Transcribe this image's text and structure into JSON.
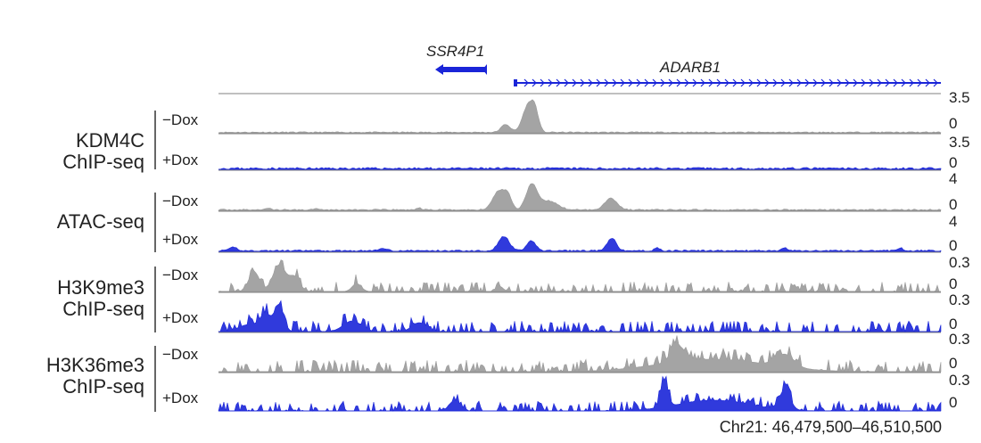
{
  "genes": [
    {
      "name": "SSR4P1",
      "strand": "-",
      "color": "#1a25d8"
    },
    {
      "name": "ADARB1",
      "strand": "+",
      "color": "#1a25d8"
    }
  ],
  "groups": [
    {
      "id": "kdm4c",
      "label_line1": "KDM4C",
      "label_line2": "ChIP-seq"
    },
    {
      "id": "atac",
      "label_line1": "ATAC-seq",
      "label_line2": ""
    },
    {
      "id": "h3k9",
      "label_line1": "H3K9me3",
      "label_line2": "ChIP-seq"
    },
    {
      "id": "h3k36",
      "label_line1": "H3K36me3",
      "label_line2": "ChIP-seq"
    }
  ],
  "tracks": [
    {
      "group": "kdm4c",
      "condition": "−Dox",
      "max_label": "3.5",
      "min_label": "0",
      "color": "#9a9a9a"
    },
    {
      "group": "kdm4c",
      "condition": "+Dox",
      "max_label": "3.5",
      "min_label": "0",
      "color": "#1a25d8"
    },
    {
      "group": "atac",
      "condition": "−Dox",
      "max_label": "4",
      "min_label": "0",
      "color": "#9a9a9a"
    },
    {
      "group": "atac",
      "condition": "+Dox",
      "max_label": "4",
      "min_label": "0",
      "color": "#1a25d8"
    },
    {
      "group": "h3k9",
      "condition": "−Dox",
      "max_label": "0.3",
      "min_label": "0",
      "color": "#9a9a9a"
    },
    {
      "group": "h3k9",
      "condition": "+Dox",
      "max_label": "0.3",
      "min_label": "0",
      "color": "#1a25d8"
    },
    {
      "group": "h3k36",
      "condition": "−Dox",
      "max_label": "0.3",
      "min_label": "0",
      "color": "#9a9a9a"
    },
    {
      "group": "h3k36",
      "condition": "+Dox",
      "max_label": "0.3",
      "min_label": "0",
      "color": "#1a25d8"
    }
  ],
  "coordinate_label": "Chr21: 46,479,500–46,510,500",
  "colors": {
    "minus_dox": "#9a9a9a",
    "plus_dox": "#1a25d8",
    "frame": "#808080"
  }
}
